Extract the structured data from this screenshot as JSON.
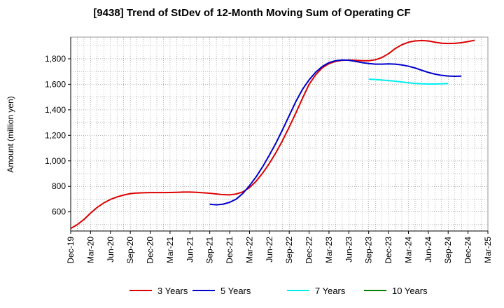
{
  "chart_data": {
    "type": "line",
    "title": "[9438]  Trend of StDev of 12-Month Moving Sum of Operating CF",
    "xlabel": "",
    "ylabel": "Amount (million yen)",
    "ylim": [
      450,
      1970
    ],
    "yticks": [
      600,
      800,
      1000,
      1200,
      1400,
      1600,
      1800
    ],
    "ytick_labels": [
      "600",
      "800",
      "1,000",
      "1,200",
      "1,400",
      "1,600",
      "1,800"
    ],
    "x_start": "Dec-19",
    "x_end": "Mar-25",
    "xtick_labels": [
      "Dec-19",
      "Mar-20",
      "Jun-20",
      "Sep-20",
      "Dec-20",
      "Mar-21",
      "Jun-21",
      "Sep-21",
      "Dec-21",
      "Mar-22",
      "Jun-22",
      "Sep-22",
      "Dec-22",
      "Mar-23",
      "Jun-23",
      "Sep-23",
      "Dec-23",
      "Mar-24",
      "Jun-24",
      "Sep-24",
      "Dec-24",
      "Mar-25"
    ],
    "grid": true,
    "legend_position": "bottom",
    "series": [
      {
        "name": "3 Years",
        "color": "#dd0000",
        "start": "Dec-19",
        "values": [
          470,
          500,
          540,
          590,
          635,
          670,
          697,
          717,
          732,
          743,
          748,
          750,
          751,
          751,
          751,
          752,
          753,
          755,
          755,
          753,
          750,
          746,
          740,
          735,
          733,
          740,
          757,
          790,
          840,
          905,
          980,
          1065,
          1160,
          1265,
          1375,
          1490,
          1600,
          1675,
          1730,
          1762,
          1780,
          1788,
          1790,
          1788,
          1785,
          1785,
          1792,
          1810,
          1840,
          1880,
          1910,
          1930,
          1940,
          1943,
          1940,
          1930,
          1922,
          1920,
          1921,
          1926,
          1935,
          1945
        ]
      },
      {
        "name": "5 Years",
        "color": "#0000cc",
        "start": "Sep-21",
        "values": [
          660,
          655,
          660,
          675,
          700,
          745,
          805,
          875,
          955,
          1045,
          1140,
          1245,
          1355,
          1465,
          1560,
          1635,
          1695,
          1740,
          1770,
          1785,
          1790,
          1788,
          1780,
          1770,
          1763,
          1758,
          1758,
          1760,
          1758,
          1752,
          1742,
          1728,
          1710,
          1693,
          1680,
          1670,
          1665,
          1663,
          1664
        ]
      },
      {
        "name": "7 Years",
        "color": "#00eeee",
        "start": "Sep-23",
        "values": [
          1640,
          1637,
          1633,
          1629,
          1624,
          1618,
          1612,
          1607,
          1604,
          1602,
          1602,
          1604,
          1606
        ]
      },
      {
        "name": "10 Years",
        "color": "#008000",
        "start": "Sep-24",
        "values": []
      }
    ]
  }
}
